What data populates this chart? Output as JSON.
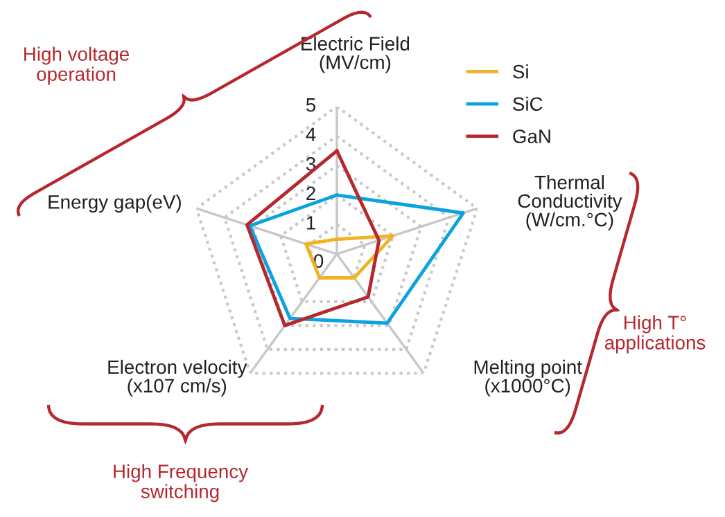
{
  "chart_data": {
    "type": "radar",
    "categories": [
      "Electric Field\n(MV/cm)",
      "Thermal\nConductivity\n(W/cm.°C)",
      "Melting point\n(x1000°C)",
      "Electron velocity\n(x107 cm/s)",
      "Energy gap(eV)"
    ],
    "series": [
      {
        "name": "Si",
        "color": "#f0b323",
        "values": [
          0.5,
          2.0,
          1.0,
          1.0,
          1.1
        ]
      },
      {
        "name": "SiC",
        "color": "#0aa3e0",
        "values": [
          2.0,
          4.5,
          2.9,
          2.7,
          3.1
        ]
      },
      {
        "name": "GaN",
        "color": "#b5282e",
        "values": [
          3.5,
          1.5,
          1.8,
          3.0,
          3.2
        ]
      }
    ],
    "ylim": [
      0,
      5
    ],
    "yticks": [
      0,
      1,
      2,
      3,
      4,
      5
    ],
    "grid": true,
    "legend": "top right",
    "annotations": [
      "High voltage\noperation",
      "High T°\napplications",
      "High Frequency\nswitching"
    ]
  }
}
